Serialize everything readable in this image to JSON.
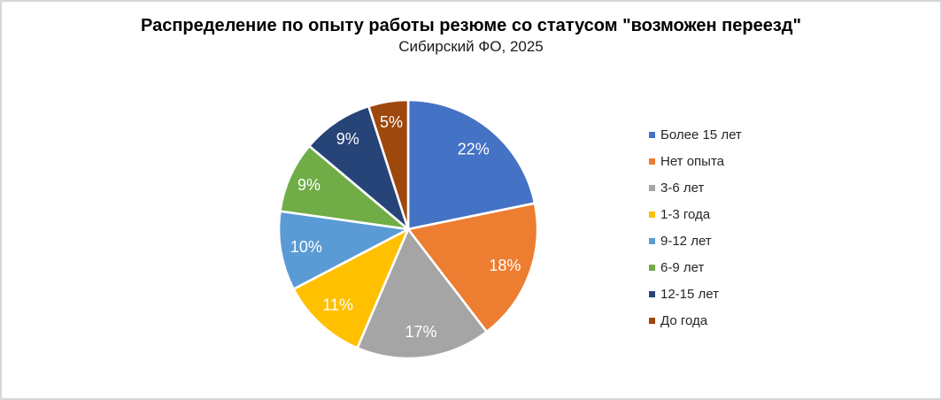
{
  "header": {
    "title": "Распределение по опыту работы резюме со статусом \"возможен переезд\"",
    "subtitle": "Сибирский ФО, 2025"
  },
  "chart_data": {
    "type": "pie",
    "title": "Распределение по опыту работы резюме со статусом \"возможен переезд\"",
    "subtitle": "Сибирский ФО, 2025",
    "start_angle_deg": 0,
    "direction": "clockwise",
    "legend_position": "right",
    "slice_border_color": "#ffffff",
    "label_color": "#ffffff",
    "slices": [
      {
        "label": "Более 15 лет",
        "value_pct": 22,
        "display": "22%",
        "color": "#4472C4"
      },
      {
        "label": "Нет опыта",
        "value_pct": 18,
        "display": "18%",
        "color": "#ED7D31"
      },
      {
        "label": "3-6 лет",
        "value_pct": 17,
        "display": "17%",
        "color": "#A5A5A5"
      },
      {
        "label": "1-3 года",
        "value_pct": 11,
        "display": "11%",
        "color": "#FFC000"
      },
      {
        "label": "9-12 лет",
        "value_pct": 10,
        "display": "10%",
        "color": "#5B9BD5"
      },
      {
        "label": "6-9 лет",
        "value_pct": 9,
        "display": "9%",
        "color": "#70AD47"
      },
      {
        "label": "12-15 лет",
        "value_pct": 9,
        "display": "9%",
        "color": "#264478"
      },
      {
        "label": "До года",
        "value_pct": 5,
        "display": "5%",
        "color": "#9E480E"
      }
    ]
  }
}
